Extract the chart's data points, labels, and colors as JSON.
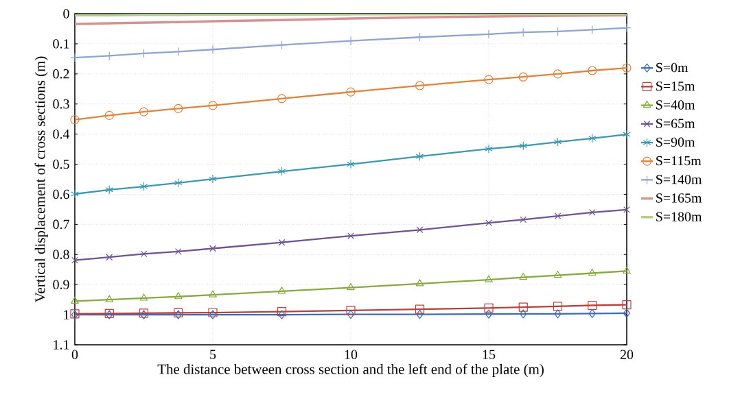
{
  "chart_data": {
    "type": "line",
    "xlabel": "The distance between cross section and the left end of the plate (m)",
    "ylabel": "Vertical displacement of cross sections (m)",
    "x": [
      0,
      1.25,
      2.5,
      3.75,
      5,
      7.5,
      10,
      12.5,
      15,
      16.25,
      17.5,
      18.75,
      20
    ],
    "xlim": [
      0,
      20
    ],
    "xticks": [
      0,
      5,
      10,
      15,
      20
    ],
    "ylim": [
      1.1,
      0
    ],
    "yticks": [
      0,
      0.1,
      0.2,
      0.3,
      0.4,
      0.5,
      0.6,
      0.7,
      0.8,
      0.9,
      1,
      1.1
    ],
    "grid": true,
    "legend": "right",
    "line_style": "solid",
    "series": [
      {
        "name": "S=0m",
        "color": "#3f6db3",
        "marker": "diamond",
        "values": [
          1.0,
          1.0,
          1.0,
          1.0,
          1.0,
          1.0,
          0.999,
          0.999,
          0.998,
          0.997,
          0.997,
          0.996,
          0.995
        ]
      },
      {
        "name": "S=15m",
        "color": "#b5413f",
        "marker": "square",
        "values": [
          0.997,
          0.996,
          0.995,
          0.994,
          0.993,
          0.99,
          0.986,
          0.982,
          0.978,
          0.975,
          0.972,
          0.969,
          0.967
        ]
      },
      {
        "name": "S=40m",
        "color": "#86a93f",
        "marker": "triangle",
        "values": [
          0.955,
          0.95,
          0.945,
          0.94,
          0.934,
          0.922,
          0.91,
          0.897,
          0.884,
          0.876,
          0.869,
          0.862,
          0.855
        ]
      },
      {
        "name": "S=65m",
        "color": "#6f5290",
        "marker": "cross",
        "values": [
          0.819,
          0.809,
          0.798,
          0.79,
          0.78,
          0.76,
          0.738,
          0.718,
          0.695,
          0.684,
          0.672,
          0.66,
          0.651
        ]
      },
      {
        "name": "S=90m",
        "color": "#3b98ae",
        "marker": "cross",
        "values": [
          0.599,
          0.585,
          0.574,
          0.562,
          0.549,
          0.524,
          0.5,
          0.474,
          0.449,
          0.439,
          0.426,
          0.414,
          0.401
        ]
      },
      {
        "name": "S=115m",
        "color": "#e0823a",
        "marker": "circle",
        "values": [
          0.352,
          0.338,
          0.326,
          0.315,
          0.305,
          0.282,
          0.26,
          0.239,
          0.219,
          0.21,
          0.2,
          0.189,
          0.18
        ]
      },
      {
        "name": "S=140m",
        "color": "#8ea5d0",
        "marker": "plus",
        "values": [
          0.146,
          0.14,
          0.132,
          0.126,
          0.119,
          0.104,
          0.09,
          0.078,
          0.068,
          0.062,
          0.059,
          0.053,
          0.047
        ]
      },
      {
        "name": "S=165m",
        "color": "#d49392",
        "marker": "none",
        "values": [
          0.034,
          0.032,
          0.03,
          0.028,
          0.025,
          0.021,
          0.016,
          0.012,
          0.009,
          0.008,
          0.007,
          0.006,
          0.005
        ]
      },
      {
        "name": "S=180m",
        "color": "#b3cd8b",
        "marker": "none",
        "values": [
          0.005,
          0.005,
          0.004,
          0.004,
          0.003,
          0.003,
          0.002,
          0.002,
          0.001,
          0.001,
          0.001,
          0.001,
          0.001
        ]
      }
    ]
  }
}
